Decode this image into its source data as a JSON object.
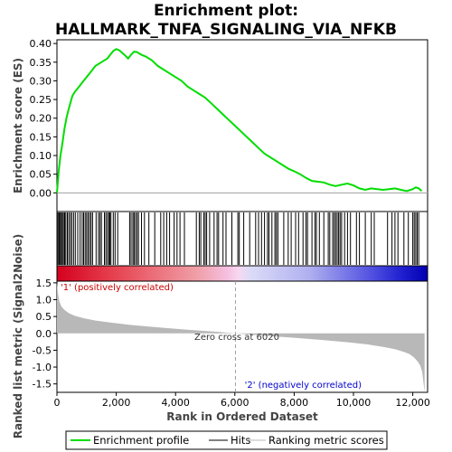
{
  "title_line1": "Enrichment plot:",
  "title_line2": "HALLMARK_TNFA_SIGNALING_VIA_NFKB",
  "es_ylabel": "Enrichment score (ES)",
  "metric_ylabel": "Ranked list metric (Signal2Noise)",
  "xlabel": "Rank in Ordered Dataset",
  "zero_cross_label": "Zero cross at 6020",
  "positive_label": "'1' (positively correlated)",
  "negative_label": "'2' (negatively correlated)",
  "legend": {
    "enrichment_profile": "Enrichment profile",
    "hits": "Hits",
    "ranking_metric": "Ranking metric scores"
  },
  "colors": {
    "es_line": "#00dd00",
    "hit": "#000000",
    "metric_fill": "#b8b8b8",
    "zero_line": "#a0a0a0"
  },
  "chart_data": {
    "type": "line",
    "x_ticks": [
      0,
      2000,
      4000,
      6000,
      8000,
      10000,
      12000
    ],
    "x_tick_labels": [
      "0",
      "2,000",
      "4,000",
      "6,000",
      "8,000",
      "10,000",
      "12,000"
    ],
    "xlim": [
      0,
      12500
    ],
    "total_rank": 12400,
    "zero_cross": 6020,
    "es": {
      "ylim": [
        -0.05,
        0.41
      ],
      "y_ticks": [
        0.0,
        0.05,
        0.1,
        0.15,
        0.2,
        0.25,
        0.3,
        0.35,
        0.4
      ],
      "y_tick_labels": [
        "0.00",
        "0.05",
        "0.10",
        "0.15",
        "0.20",
        "0.25",
        "0.30",
        "0.35",
        "0.40"
      ],
      "x": [
        0,
        60,
        120,
        180,
        250,
        320,
        380,
        450,
        520,
        600,
        700,
        800,
        900,
        1000,
        1100,
        1200,
        1300,
        1400,
        1500,
        1600,
        1700,
        1800,
        1900,
        2000,
        2100,
        2200,
        2300,
        2400,
        2500,
        2600,
        2700,
        2800,
        2900,
        3000,
        3200,
        3400,
        3600,
        3800,
        4000,
        4200,
        4400,
        4600,
        4800,
        5000,
        5200,
        5400,
        5600,
        5800,
        6000,
        6200,
        6400,
        6600,
        6800,
        7000,
        7200,
        7400,
        7600,
        7800,
        8000,
        8200,
        8400,
        8600,
        8800,
        9000,
        9200,
        9400,
        9600,
        9800,
        10000,
        10200,
        10400,
        10600,
        10800,
        11000,
        11200,
        11400,
        11600,
        11800,
        12000,
        12100,
        12200,
        12300
      ],
      "y": [
        0.0,
        0.06,
        0.1,
        0.13,
        0.17,
        0.2,
        0.22,
        0.24,
        0.26,
        0.27,
        0.28,
        0.29,
        0.3,
        0.31,
        0.32,
        0.33,
        0.34,
        0.345,
        0.35,
        0.355,
        0.36,
        0.37,
        0.38,
        0.385,
        0.382,
        0.375,
        0.368,
        0.36,
        0.37,
        0.378,
        0.377,
        0.372,
        0.368,
        0.365,
        0.355,
        0.34,
        0.33,
        0.32,
        0.31,
        0.3,
        0.285,
        0.275,
        0.265,
        0.255,
        0.24,
        0.225,
        0.21,
        0.195,
        0.18,
        0.165,
        0.15,
        0.135,
        0.12,
        0.105,
        0.095,
        0.085,
        0.075,
        0.065,
        0.058,
        0.05,
        0.04,
        0.032,
        0.03,
        0.028,
        0.022,
        0.018,
        0.022,
        0.025,
        0.02,
        0.012,
        0.008,
        0.012,
        0.01,
        0.008,
        0.01,
        0.012,
        0.008,
        0.005,
        0.01,
        0.015,
        0.012,
        0.005
      ]
    },
    "hits": [
      10,
      40,
      80,
      110,
      150,
      180,
      220,
      260,
      300,
      350,
      400,
      450,
      500,
      560,
      620,
      700,
      780,
      850,
      900,
      950,
      1000,
      1050,
      1100,
      1150,
      1200,
      1320,
      1400,
      1450,
      1500,
      1600,
      1650,
      1700,
      1750,
      1780,
      1820,
      1900,
      1960,
      2050,
      2450,
      2500,
      2560,
      2600,
      2650,
      2700,
      2750,
      2850,
      2950,
      3100,
      3300,
      3500,
      3600,
      3700,
      3800,
      3950,
      4050,
      4150,
      4300,
      4700,
      4800,
      4850,
      4950,
      5000,
      5050,
      5150,
      5300,
      5400,
      5450,
      5600,
      5700,
      5900,
      6100,
      6150,
      6300,
      6500,
      6700,
      6800,
      6900,
      7000,
      7100,
      7150,
      7250,
      7350,
      7400,
      7450,
      7650,
      7800,
      7900,
      8050,
      8150,
      8300,
      8400,
      8450,
      8600,
      8700,
      8750,
      8850,
      9000,
      9150,
      9200,
      9300,
      9350,
      9400,
      9450,
      9500,
      9550,
      9600,
      9700,
      9800,
      9900,
      10100,
      10200,
      10400,
      10600,
      10700,
      11150,
      11300,
      11400,
      11500,
      11700,
      11850,
      12000,
      12050,
      12100,
      12150,
      12200
    ],
    "metric": {
      "ylim": [
        -1.75,
        1.55
      ],
      "y_ticks": [
        -1.5,
        -1.0,
        -0.5,
        0.0,
        0.5,
        1.0,
        1.5
      ],
      "y_tick_labels": [
        "-1.5",
        "-1.0",
        "-0.5",
        "0.0",
        "0.5",
        "1.0",
        "1.5"
      ],
      "x": [
        0,
        30,
        80,
        150,
        250,
        400,
        600,
        900,
        1300,
        1800,
        2500,
        3500,
        4500,
        5500,
        6020,
        7000,
        8000,
        9000,
        10000,
        10500,
        11000,
        11400,
        11700,
        11900,
        12050,
        12150,
        12250,
        12320,
        12360,
        12400
      ],
      "y": [
        1.5,
        1.2,
        0.95,
        0.8,
        0.7,
        0.6,
        0.52,
        0.45,
        0.38,
        0.32,
        0.25,
        0.17,
        0.1,
        0.04,
        0.0,
        -0.07,
        -0.13,
        -0.2,
        -0.28,
        -0.33,
        -0.4,
        -0.47,
        -0.55,
        -0.62,
        -0.72,
        -0.82,
        -0.95,
        -1.15,
        -1.45,
        -1.75
      ]
    },
    "gradient_stops": [
      {
        "offset": 0.0,
        "color": "#d4001e"
      },
      {
        "offset": 0.15,
        "color": "#e6404e"
      },
      {
        "offset": 0.38,
        "color": "#f0a0a8"
      },
      {
        "offset": 0.46,
        "color": "#f5c0e0"
      },
      {
        "offset": 0.49,
        "color": "#f8d8f0"
      },
      {
        "offset": 0.52,
        "color": "#dcdcf8"
      },
      {
        "offset": 0.68,
        "color": "#b0b0f0"
      },
      {
        "offset": 0.85,
        "color": "#5050e0"
      },
      {
        "offset": 0.93,
        "color": "#2020d0"
      },
      {
        "offset": 1.0,
        "color": "#0000b0"
      }
    ]
  }
}
